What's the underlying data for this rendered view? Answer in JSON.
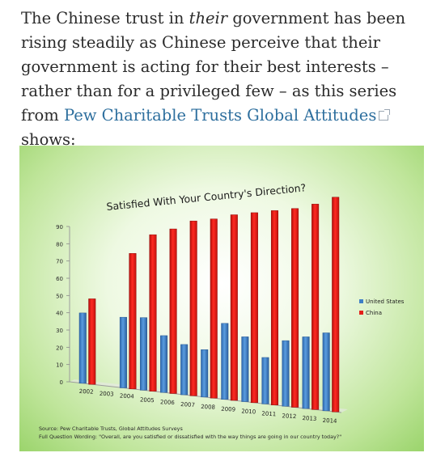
{
  "article": {
    "text1": "The Chinese trust in ",
    "emphasis": "their",
    "text2": " government has been rising steadily as Chinese perceive that their government is acting for their best interests – rather than for a privileged few – as this series from ",
    "link_text": "Pew Charitable Trusts Global Attitudes",
    "text3": " shows:"
  },
  "chart_data": {
    "type": "bar",
    "title": "Satisfied With Your Country's Direction?",
    "categories": [
      "2002",
      "2003",
      "2004",
      "2005",
      "2006",
      "2007",
      "2008",
      "2009",
      "2010",
      "2011",
      "2012",
      "2013",
      "2014"
    ],
    "series": [
      {
        "name": "United States",
        "color": "#3f7fc6",
        "values": [
          40,
          null,
          38,
          38,
          29,
          25,
          23,
          36,
          30,
          21,
          29,
          31,
          33
        ]
      },
      {
        "name": "China",
        "color": "#e3201b",
        "values": [
          48,
          null,
          72,
          81,
          83,
          86,
          86,
          87,
          87,
          87,
          87,
          88,
          90
        ]
      }
    ],
    "yticks": [
      "0",
      "10",
      "20",
      "30",
      "40",
      "50",
      "60",
      "70",
      "80",
      "90"
    ],
    "ylim": [
      0,
      90
    ],
    "legend_position": "right",
    "grid": false,
    "background": "#a6da74",
    "source": "Source: Pew Charitable Trusts, Global Attitudes Surveys",
    "question": "Full Question Wording: \"Overall, are you satisfied or dissatisfied with the way things are going in our country today?\""
  }
}
